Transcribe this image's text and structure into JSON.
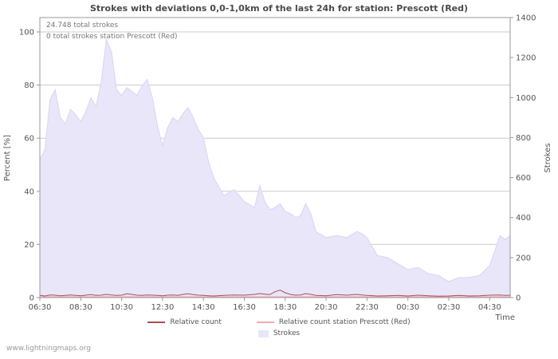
{
  "watermark": "www.lightningmaps.org",
  "chart_data": {
    "type": "area",
    "title": "Strokes with deviations 0,0-1,0km of the last 24h for station: Prescott (Red)",
    "annotations": [
      "24.748 total strokes",
      "0 total strokes station Prescott (Red)"
    ],
    "axes": {
      "left": {
        "label": "Percent [%]",
        "ticks": [
          0,
          20,
          40,
          60,
          80,
          100
        ],
        "max": 100
      },
      "right": {
        "label": "Strokes",
        "ticks": [
          0,
          200,
          400,
          600,
          800,
          1000,
          1200,
          1400
        ],
        "max": 1400
      },
      "x": {
        "label": "Time",
        "start": "06:30",
        "tick_labels": [
          "06:30",
          "08:30",
          "10:30",
          "12:30",
          "14:30",
          "16:30",
          "18:30",
          "20:30",
          "22:30",
          "00:30",
          "02:30",
          "04:30"
        ],
        "tick_minutes": [
          0,
          120,
          240,
          360,
          480,
          600,
          720,
          840,
          960,
          1080,
          1200,
          1320
        ],
        "total_minutes": 1380
      }
    },
    "x_minutes": [
      0,
      15,
      30,
      45,
      60,
      75,
      90,
      105,
      120,
      135,
      150,
      165,
      180,
      195,
      210,
      225,
      240,
      255,
      270,
      285,
      300,
      315,
      330,
      345,
      360,
      375,
      390,
      405,
      420,
      435,
      450,
      465,
      480,
      495,
      510,
      540,
      570,
      600,
      630,
      645,
      660,
      675,
      690,
      705,
      720,
      735,
      750,
      765,
      780,
      795,
      810,
      840,
      870,
      900,
      930,
      945,
      960,
      990,
      1020,
      1050,
      1080,
      1110,
      1140,
      1170,
      1200,
      1230,
      1260,
      1290,
      1320,
      1350,
      1365,
      1380
    ],
    "series": {
      "strokes": {
        "name": "Strokes",
        "axis": "right",
        "values": [
          690,
          740,
          990,
          1040,
          900,
          870,
          940,
          915,
          880,
          930,
          1000,
          955,
          1080,
          1290,
          1230,
          1040,
          1010,
          1050,
          1030,
          1010,
          1060,
          1090,
          1000,
          860,
          760,
          850,
          900,
          880,
          920,
          950,
          900,
          840,
          800,
          680,
          600,
          510,
          540,
          480,
          450,
          560,
          480,
          440,
          450,
          470,
          430,
          420,
          400,
          410,
          470,
          420,
          330,
          300,
          310,
          300,
          330,
          320,
          300,
          210,
          200,
          170,
          140,
          150,
          120,
          110,
          80,
          100,
          100,
          110,
          160,
          310,
          290,
          310
        ]
      },
      "relative_count": {
        "name": "Relative count",
        "axis": "left",
        "values": [
          0.8,
          0.6,
          1.0,
          0.9,
          0.7,
          0.8,
          1.0,
          0.8,
          0.7,
          0.9,
          1.1,
          0.8,
          0.9,
          1.2,
          1.0,
          0.8,
          0.9,
          1.4,
          1.2,
          0.9,
          0.8,
          1.0,
          0.9,
          0.8,
          0.7,
          0.9,
          1.0,
          0.8,
          1.2,
          1.4,
          1.1,
          0.9,
          0.8,
          0.7,
          0.6,
          0.8,
          1.0,
          0.9,
          1.2,
          1.5,
          1.3,
          1.1,
          2.2,
          2.8,
          1.8,
          1.2,
          0.9,
          1.0,
          1.5,
          1.2,
          0.8,
          0.7,
          1.1,
          0.9,
          1.2,
          1.0,
          0.8,
          0.6,
          0.7,
          0.8,
          0.6,
          0.9,
          0.7,
          0.5,
          0.6,
          0.8,
          0.6,
          0.7,
          0.9,
          1.0,
          0.8,
          0.9
        ]
      },
      "relative_count_station": {
        "name": "Relative count station Prescott (Red)",
        "axis": "left",
        "constant": 0
      }
    },
    "legend": [
      {
        "label": "Relative count",
        "color": "#a84f4f",
        "type": "line"
      },
      {
        "label": "Relative count station Prescott (Red)",
        "color": "#f3a8b8",
        "type": "line"
      },
      {
        "label": "Strokes",
        "color": "#e9e6fa",
        "type": "area"
      }
    ],
    "colors": {
      "area_fill": "#e9e6fa",
      "area_edge": "#d9d4f3",
      "relative_line": "#a84f4f",
      "station_line": "#f3a8b8",
      "grid": "#cccccc",
      "frame": "#999999",
      "text": "#555555"
    }
  }
}
